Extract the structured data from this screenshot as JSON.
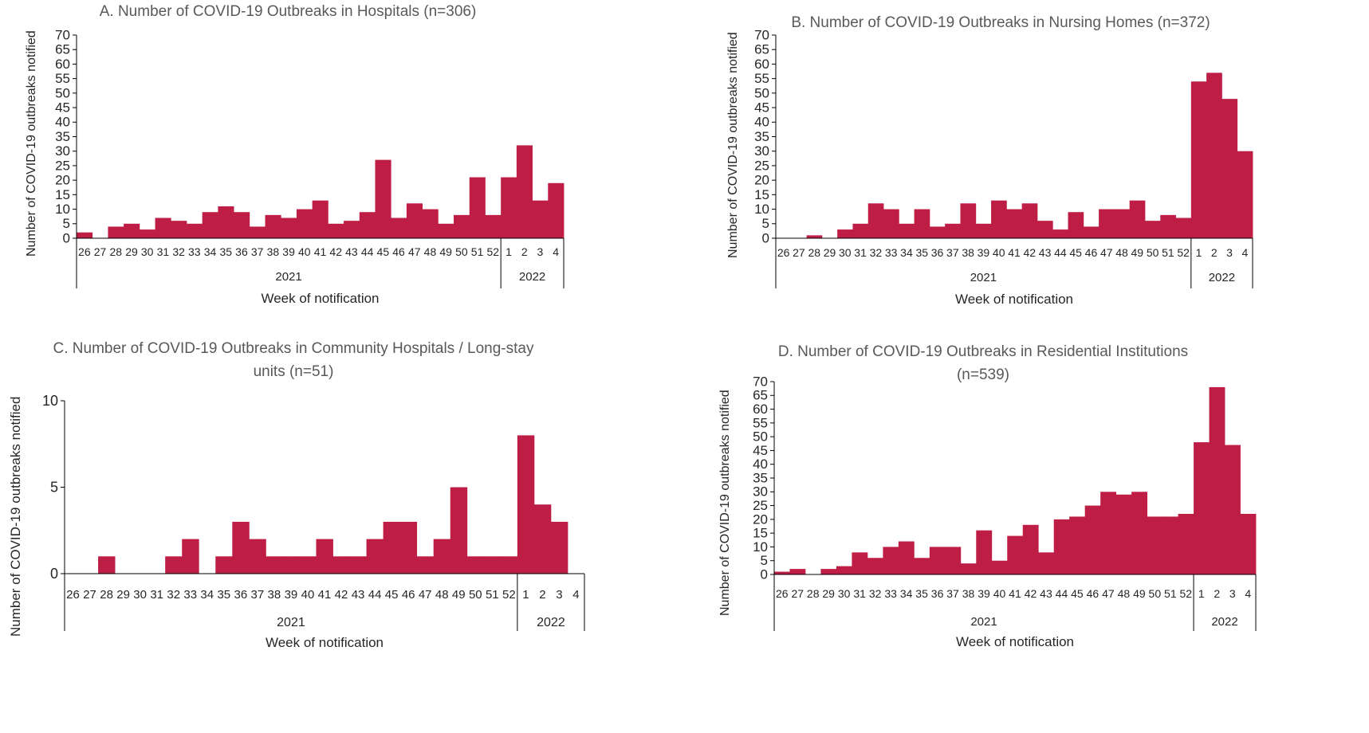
{
  "colors": {
    "bar": "#be1e45",
    "axis": "#000000",
    "text": "#262626",
    "title": "#595959"
  },
  "chart_data": [
    {
      "type": "bar",
      "title": "A. Number of COVID-19 Outbreaks in Hospitals (n=306)",
      "ylabel": "Number of COVID-19 outbreaks notified",
      "xlabel": "Week of notification",
      "ylim": [
        0,
        70
      ],
      "yticks": [
        0,
        5,
        10,
        15,
        20,
        25,
        30,
        35,
        40,
        45,
        50,
        55,
        60,
        65,
        70
      ],
      "categories": [
        "26",
        "27",
        "28",
        "29",
        "30",
        "31",
        "32",
        "33",
        "34",
        "35",
        "36",
        "37",
        "38",
        "39",
        "40",
        "41",
        "42",
        "43",
        "44",
        "45",
        "46",
        "47",
        "48",
        "49",
        "50",
        "51",
        "52",
        "1",
        "2",
        "3",
        "4"
      ],
      "groups": [
        {
          "label": "2021",
          "count": 27
        },
        {
          "label": "2022",
          "count": 4
        }
      ],
      "values": [
        2,
        0,
        4,
        5,
        3,
        7,
        6,
        5,
        9,
        11,
        9,
        4,
        8,
        7,
        10,
        13,
        5,
        6,
        9,
        27,
        7,
        12,
        10,
        5,
        8,
        21,
        8,
        21,
        32,
        13,
        19
      ]
    },
    {
      "type": "bar",
      "title": "B. Number of COVID-19 Outbreaks in Nursing Homes (n=372)",
      "ylabel": "Number of COVID-19 outbreaks notified",
      "xlabel": "Week of notification",
      "ylim": [
        0,
        70
      ],
      "yticks": [
        0,
        5,
        10,
        15,
        20,
        25,
        30,
        35,
        40,
        45,
        50,
        55,
        60,
        65,
        70
      ],
      "categories": [
        "26",
        "27",
        "28",
        "29",
        "30",
        "31",
        "32",
        "33",
        "34",
        "35",
        "36",
        "37",
        "38",
        "39",
        "40",
        "41",
        "42",
        "43",
        "44",
        "45",
        "46",
        "47",
        "48",
        "49",
        "50",
        "51",
        "52",
        "1",
        "2",
        "3",
        "4"
      ],
      "groups": [
        {
          "label": "2021",
          "count": 27
        },
        {
          "label": "2022",
          "count": 4
        }
      ],
      "values": [
        0,
        0,
        1,
        0,
        3,
        5,
        12,
        10,
        5,
        10,
        4,
        5,
        12,
        5,
        13,
        10,
        12,
        6,
        3,
        9,
        4,
        10,
        10,
        13,
        6,
        8,
        7,
        54,
        57,
        48,
        30
      ]
    },
    {
      "type": "bar",
      "title": "C. Number of COVID-19 Outbreaks in Community Hospitals / Long-stay units (n=51)",
      "ylabel": "Number of COVID-19 outbreaks notified",
      "xlabel": "Week of notification",
      "ylim": [
        0,
        10
      ],
      "yticks": [
        0,
        5,
        10
      ],
      "categories": [
        "26",
        "27",
        "28",
        "29",
        "30",
        "31",
        "32",
        "33",
        "34",
        "35",
        "36",
        "37",
        "38",
        "39",
        "40",
        "41",
        "42",
        "43",
        "44",
        "45",
        "46",
        "47",
        "48",
        "49",
        "50",
        "51",
        "52",
        "1",
        "2",
        "3",
        "4"
      ],
      "groups": [
        {
          "label": "2021",
          "count": 27
        },
        {
          "label": "2022",
          "count": 4
        }
      ],
      "values": [
        0,
        0,
        1,
        0,
        0,
        0,
        1,
        2,
        0,
        1,
        3,
        2,
        1,
        1,
        1,
        2,
        1,
        1,
        2,
        3,
        3,
        1,
        2,
        5,
        1,
        1,
        1,
        8,
        4,
        3,
        0
      ]
    },
    {
      "type": "bar",
      "title": "D. Number of COVID-19 Outbreaks in Residential Institutions (n=539)",
      "ylabel": "Number of COVID-19 outbreaks notified",
      "xlabel": "Week of notification",
      "ylim": [
        0,
        70
      ],
      "yticks": [
        0,
        5,
        10,
        15,
        20,
        25,
        30,
        35,
        40,
        45,
        50,
        55,
        60,
        65,
        70
      ],
      "categories": [
        "26",
        "27",
        "28",
        "29",
        "30",
        "31",
        "32",
        "33",
        "34",
        "35",
        "36",
        "37",
        "38",
        "39",
        "40",
        "41",
        "42",
        "43",
        "44",
        "45",
        "46",
        "47",
        "48",
        "49",
        "50",
        "51",
        "52",
        "1",
        "2",
        "3",
        "4"
      ],
      "groups": [
        {
          "label": "2021",
          "count": 27
        },
        {
          "label": "2022",
          "count": 4
        }
      ],
      "values": [
        1,
        2,
        0,
        2,
        3,
        8,
        6,
        10,
        12,
        6,
        10,
        10,
        4,
        16,
        5,
        14,
        18,
        8,
        20,
        21,
        25,
        30,
        29,
        30,
        21,
        21,
        22,
        48,
        68,
        47,
        22
      ]
    }
  ]
}
